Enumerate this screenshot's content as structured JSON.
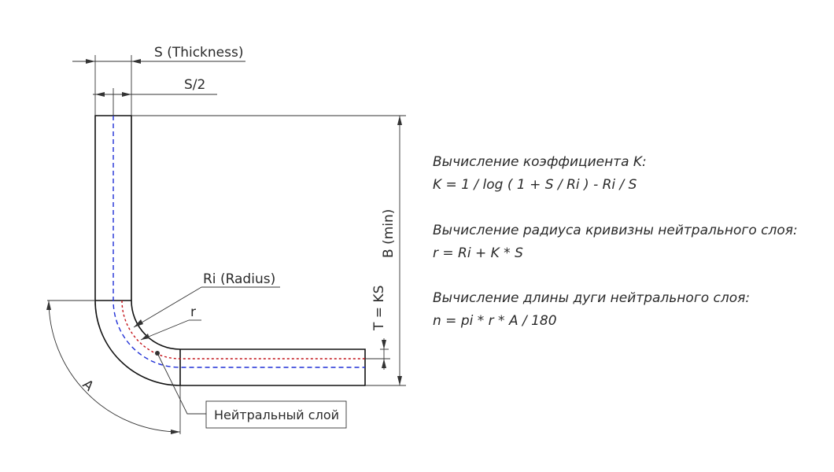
{
  "labels": {
    "thickness": "S (Thickness)",
    "half_thickness": "S/2",
    "b_min": "B (min)",
    "t_ks": "T = KS",
    "ri_radius": "Ri (Radius)",
    "r": "r",
    "angle": "A",
    "neutral_layer": "Нейтральный слой"
  },
  "formulas": [
    {
      "title": "Вычисление коэффициента K:",
      "expr": "K = 1 / log ( 1 + S / Ri ) - Ri / S"
    },
    {
      "title": "Вычисление радиуса кривизны нейтрального слоя:",
      "expr": "r = Ri + K * S"
    },
    {
      "title": "Вычисление длины дуги нейтрального слоя:",
      "expr": "n = pi * r * A / 180"
    }
  ],
  "colors": {
    "centerline": "#1f2fd6",
    "neutral_line": "#c4141a",
    "outline": "#111111"
  }
}
